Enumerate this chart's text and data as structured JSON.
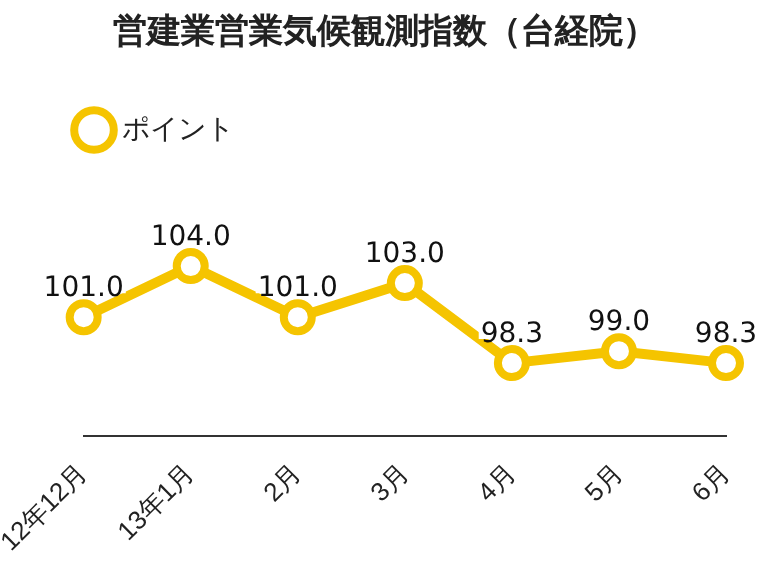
{
  "chart_data": {
    "type": "line",
    "title": "営建業営業気候観測指数（台経院）",
    "categories": [
      "12年12月",
      "13年1月",
      "2月",
      "3月",
      "4月",
      "5月",
      "6月"
    ],
    "series": [
      {
        "name": "ポイント",
        "color": "#f5c400",
        "values": [
          101.0,
          104.0,
          101.0,
          103.0,
          98.3,
          99.0,
          98.3
        ],
        "value_labels": [
          "101.0",
          "104.0",
          "101.0",
          "103.0",
          "98.3",
          "99.0",
          "98.3"
        ]
      }
    ],
    "legend": "top left",
    "marker": "circle",
    "line_style": "solid"
  }
}
